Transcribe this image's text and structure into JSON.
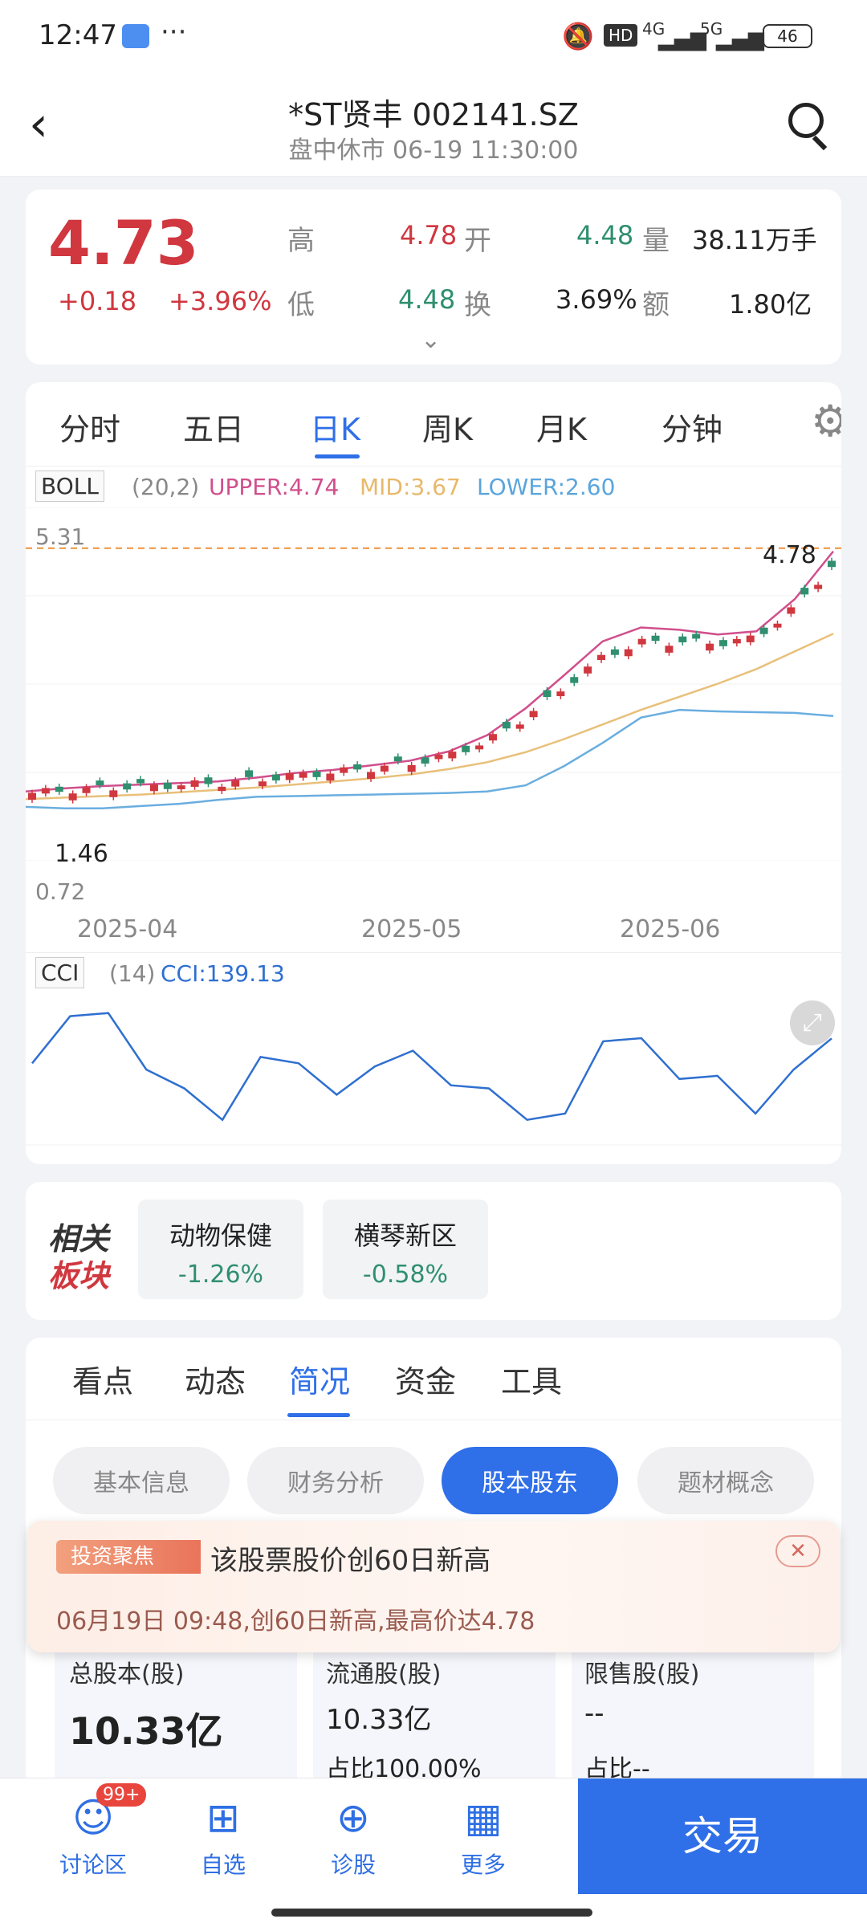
{
  "status": {
    "time": "12:47",
    "battery": "46",
    "net1": "4G",
    "net2": "5G"
  },
  "header": {
    "title": "*ST贤丰 002141.SZ",
    "subtitle": "盘中休市 06-19 11:30:00"
  },
  "quote": {
    "price": "4.73",
    "change": "+0.18",
    "pct": "+3.96%",
    "high_label": "高",
    "high": "4.78",
    "open_label": "开",
    "open": "4.48",
    "vol_label": "量",
    "vol": "38.11万手",
    "low_label": "低",
    "low": "4.48",
    "turn_label": "换",
    "turn": "3.69%",
    "amt_label": "额",
    "amt": "1.80亿"
  },
  "chart_tabs": [
    "分时",
    "五日",
    "日K",
    "周K",
    "月K",
    "分钟"
  ],
  "active_chart_tab": 2,
  "boll": {
    "name": "BOLL",
    "params": "(20,2)",
    "upper": "UPPER:4.74",
    "mid": "MID:3.67",
    "lower": "LOWER:2.60"
  },
  "kline": {
    "top_label": "5.31",
    "bottom_label": "0.72",
    "max_label": "4.78",
    "min_label": "1.46",
    "dates": [
      "2025-04",
      "2025-05",
      "2025-06"
    ]
  },
  "cci": {
    "name": "CCI",
    "params": "(14)",
    "value": "CCI:139.13"
  },
  "chart_data": [
    {
      "type": "line",
      "title": "BOLL",
      "ylim": [
        0.72,
        5.31
      ],
      "series": [
        {
          "name": "UPPER",
          "values": [
            1.62,
            1.66,
            1.69,
            1.71,
            1.73,
            1.75,
            1.8,
            1.86,
            1.9,
            1.96,
            2.02,
            2.14,
            2.35,
            2.7,
            3.13,
            3.57,
            3.75,
            3.72,
            3.66,
            3.7,
            4.12,
            4.74
          ]
        },
        {
          "name": "MID",
          "values": [
            1.52,
            1.54,
            1.56,
            1.58,
            1.61,
            1.64,
            1.67,
            1.71,
            1.75,
            1.79,
            1.84,
            1.91,
            2.0,
            2.13,
            2.3,
            2.49,
            2.68,
            2.85,
            3.02,
            3.21,
            3.44,
            3.67
          ]
        },
        {
          "name": "LOWER",
          "values": [
            1.42,
            1.4,
            1.4,
            1.43,
            1.46,
            1.51,
            1.55,
            1.56,
            1.57,
            1.58,
            1.59,
            1.6,
            1.62,
            1.7,
            1.95,
            2.25,
            2.58,
            2.68,
            2.66,
            2.65,
            2.64,
            2.6
          ]
        }
      ]
    },
    {
      "type": "line",
      "title": "CCI",
      "series": [
        {
          "name": "CCI",
          "values": [
            60,
            210,
            220,
            40,
            -20,
            -120,
            80,
            60,
            -40,
            50,
            100,
            -10,
            -20,
            -120,
            -100,
            130,
            140,
            10,
            20,
            -100,
            40,
            139.13
          ]
        }
      ]
    }
  ],
  "sectors": {
    "title1": "相关",
    "title2": "板块",
    "items": [
      {
        "name": "动物保健",
        "pct": "-1.26%"
      },
      {
        "name": "横琴新区",
        "pct": "-0.58%"
      }
    ]
  },
  "info_tabs": [
    "看点",
    "动态",
    "简况",
    "资金",
    "工具"
  ],
  "active_info_tab": 2,
  "subtabs": [
    "基本信息",
    "财务分析",
    "股本股东",
    "题材概念"
  ],
  "active_subtab": 2,
  "toast": {
    "badge": "投资聚焦",
    "title": "该股票股价创60日新高",
    "detail": "06月19日 09:48,创60日新高,最高价达4.78"
  },
  "shares": [
    {
      "label": "总股本(股)",
      "value": "10.33亿",
      "sub": ""
    },
    {
      "label": "流通股(股)",
      "value": "10.33亿",
      "sub": "占比100.00%"
    },
    {
      "label": "限售股(股)",
      "value": "--",
      "sub": "占比--"
    }
  ],
  "bottom_nav": {
    "items": [
      "讨论区",
      "自选",
      "诊股",
      "更多"
    ],
    "badge": "99+",
    "trade": "交易"
  }
}
